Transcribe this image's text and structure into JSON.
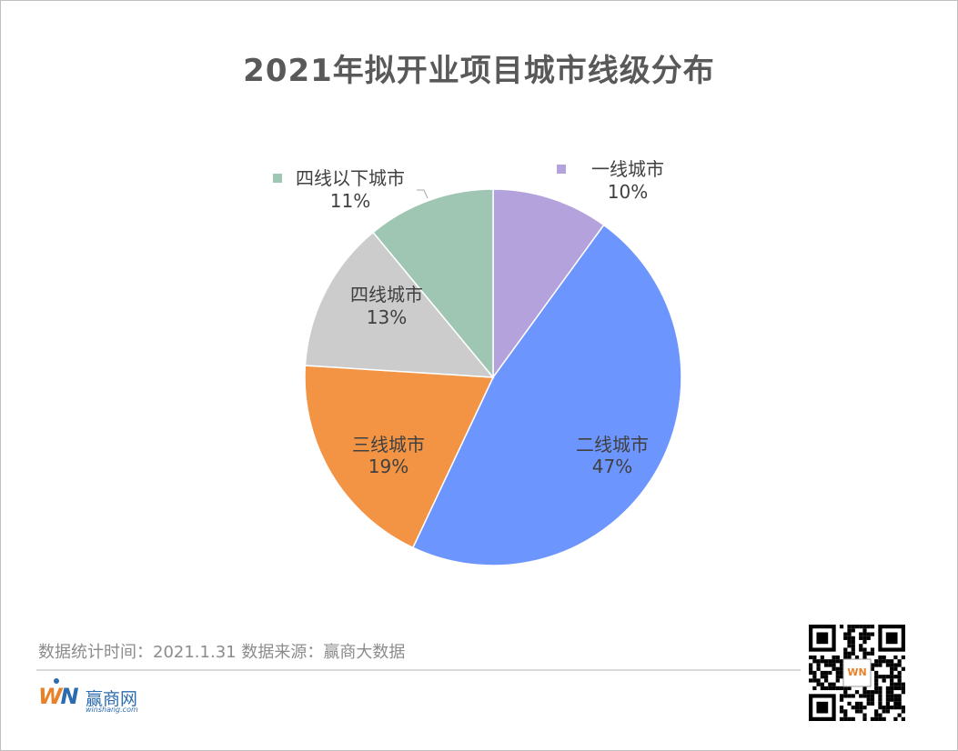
{
  "chart_data": {
    "type": "pie",
    "title": "2021年拟开业项目城市线级分布",
    "slices": [
      {
        "label": "一线城市",
        "pct_label": "10%",
        "value": 10,
        "color": "#b4a2dd"
      },
      {
        "label": "二线城市",
        "pct_label": "47%",
        "value": 47,
        "color": "#6d95fe"
      },
      {
        "label": "三线城市",
        "pct_label": "19%",
        "value": 19,
        "color": "#f29444"
      },
      {
        "label": "四线城市",
        "pct_label": "13%",
        "value": 13,
        "color": "#cccccc"
      },
      {
        "label": "四线以下城市",
        "pct_label": "11%",
        "value": 11,
        "color": "#9fc6b3"
      }
    ]
  },
  "footer": {
    "source_text": "数据统计时间：2021.1.31  数据来源：赢商大数据"
  },
  "logo": {
    "mark_w": "W",
    "mark_n": "N",
    "name": "赢商网",
    "sub": "winshang.com"
  },
  "qr": {
    "center_mark": "WN"
  }
}
